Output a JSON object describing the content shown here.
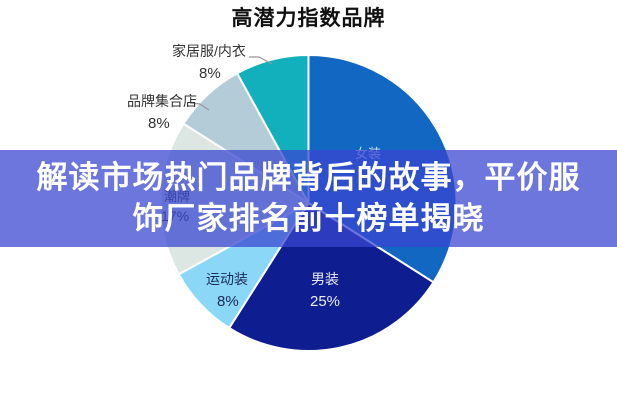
{
  "chart_data": {
    "type": "pie",
    "title": "高潜力指数品牌",
    "categories": [
      "女装",
      "男装",
      "运动装",
      "潮牌",
      "品牌集合店",
      "家居服/内衣"
    ],
    "values": [
      34,
      25,
      8,
      17,
      8,
      8
    ],
    "colors": [
      "#1267c3",
      "#0e1e90",
      "#8ad7f8",
      "#dce6e3",
      "#b4cbd8",
      "#12afbc"
    ],
    "start_angle_deg": 0,
    "direction": "clockwise",
    "legend": "none",
    "slice_border_color": "#ffffff"
  },
  "labels": {
    "homewear": {
      "name": "家居服/内衣",
      "pct": "8%"
    },
    "collection_store": {
      "name": "品牌集合店",
      "pct": "8%"
    },
    "trend": {
      "name": "潮牌",
      "pct": "17%"
    },
    "womens": {
      "name": "女装"
    },
    "sports": {
      "name": "运动装",
      "pct": "8%"
    },
    "mens": {
      "name": "男装",
      "pct": "25%"
    }
  },
  "banner": {
    "line1": "解读市场热门品牌背后的故事，平价服",
    "line2": "饰厂家排名前十榜单揭晓",
    "bg_color": "rgba(56,70,208,0.74)",
    "text_color": "#ffffff"
  }
}
